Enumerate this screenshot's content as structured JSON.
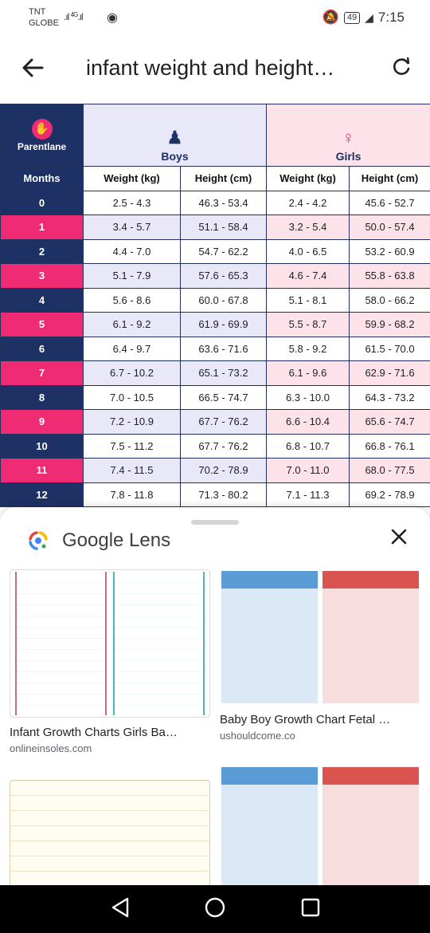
{
  "status": {
    "carrier_line1": "TNT",
    "carrier_line2": "GLOBE",
    "network": "4G",
    "battery": "49",
    "time": "7:15"
  },
  "appbar": {
    "title": "infant weight and height…"
  },
  "chart": {
    "logo_text": "Parentlane",
    "boys_label": "Boys",
    "girls_label": "Girls",
    "headers": [
      "Months",
      "Weight (kg)",
      "Height (cm)",
      "Weight (kg)",
      "Height (cm)"
    ],
    "rows": [
      [
        "0",
        "2.5 - 4.3",
        "46.3 - 53.4",
        "2.4 - 4.2",
        "45.6 - 52.7"
      ],
      [
        "1",
        "3.4 - 5.7",
        "51.1 - 58.4",
        "3.2 - 5.4",
        "50.0 - 57.4"
      ],
      [
        "2",
        "4.4 - 7.0",
        "54.7 - 62.2",
        "4.0 - 6.5",
        "53.2 - 60.9"
      ],
      [
        "3",
        "5.1 - 7.9",
        "57.6 - 65.3",
        "4.6 - 7.4",
        "55.8 - 63.8"
      ],
      [
        "4",
        "5.6 - 8.6",
        "60.0 - 67.8",
        "5.1 - 8.1",
        "58.0 - 66.2"
      ],
      [
        "5",
        "6.1 - 9.2",
        "61.9 - 69.9",
        "5.5 - 8.7",
        "59.9 - 68.2"
      ],
      [
        "6",
        "6.4 - 9.7",
        "63.6 - 71.6",
        "5.8 - 9.2",
        "61.5 - 70.0"
      ],
      [
        "7",
        "6.7 - 10.2",
        "65.1 - 73.2",
        "6.1 - 9.6",
        "62.9 - 71.6"
      ],
      [
        "8",
        "7.0 - 10.5",
        "66.5 - 74.7",
        "6.3 - 10.0",
        "64.3 - 73.2"
      ],
      [
        "9",
        "7.2 - 10.9",
        "67.7 - 76.2",
        "6.6 - 10.4",
        "65.6 - 74.7"
      ],
      [
        "10",
        "7.5 - 11.2",
        "67.7 - 76.2",
        "6.8 - 10.7",
        "66.8 - 76.1"
      ],
      [
        "11",
        "7.4 - 11.5",
        "70.2 - 78.9",
        "7.0 - 11.0",
        "68.0 - 77.5"
      ],
      [
        "12",
        "7.8 - 11.8",
        "71.3 - 80.2",
        "7.1 - 11.3",
        "69.2 - 78.9"
      ]
    ]
  },
  "lens": {
    "title": "Google Lens",
    "results": [
      {
        "title": "Infant Growth Charts Girls Ba…",
        "site": "onlineinsoles.com"
      },
      {
        "title": "Baby Boy Growth Chart Fetal …",
        "site": "ushouldcome.co"
      }
    ]
  },
  "icons": {
    "back": "arrow-left-icon",
    "refresh": "refresh-icon",
    "close": "close-icon",
    "nav_back": "triangle-back-icon",
    "nav_home": "circle-home-icon",
    "nav_recent": "square-recents-icon"
  }
}
